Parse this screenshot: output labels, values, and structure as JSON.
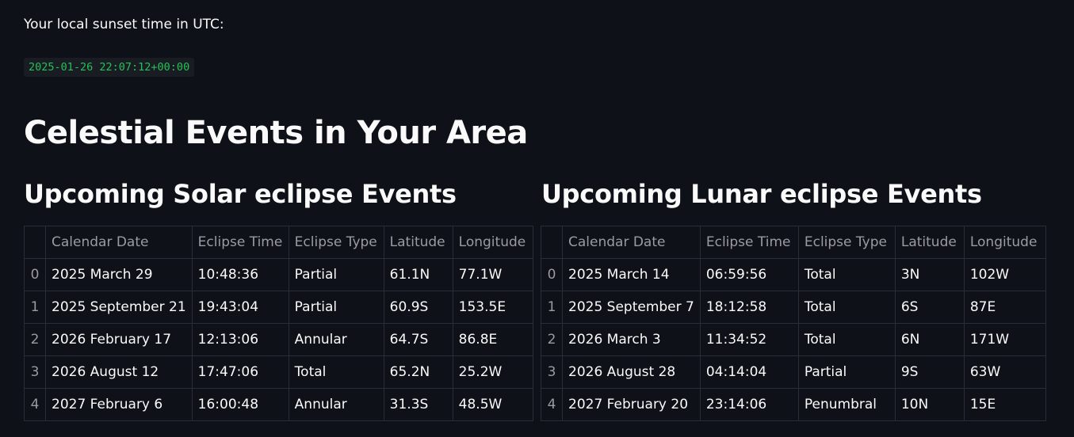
{
  "sunset": {
    "label": "Your local sunset time in UTC:",
    "value": "2025-01-26 22:07:12+00:00"
  },
  "page_title": "Celestial Events in Your Area",
  "solar": {
    "title": "Upcoming Solar eclipse Events",
    "columns": [
      "",
      "Calendar Date",
      "Eclipse Time",
      "Eclipse Type",
      "Latitude",
      "Longitude"
    ],
    "rows": [
      [
        "0",
        "2025 March 29",
        "10:48:36",
        "Partial",
        "61.1N",
        "77.1W"
      ],
      [
        "1",
        "2025 September 21",
        "19:43:04",
        "Partial",
        "60.9S",
        "153.5E"
      ],
      [
        "2",
        "2026 February 17",
        "12:13:06",
        "Annular",
        "64.7S",
        "86.8E"
      ],
      [
        "3",
        "2026 August 12",
        "17:47:06",
        "Total",
        "65.2N",
        "25.2W"
      ],
      [
        "4",
        "2027 February 6",
        "16:00:48",
        "Annular",
        "31.3S",
        "48.5W"
      ]
    ]
  },
  "lunar": {
    "title": "Upcoming Lunar eclipse Events",
    "columns": [
      "",
      "Calendar Date",
      "Eclipse Time",
      "Eclipse Type",
      "Latitude",
      "Longitude"
    ],
    "rows": [
      [
        "0",
        "2025 March 14",
        "06:59:56",
        "Total",
        "3N",
        "102W"
      ],
      [
        "1",
        "2025 September 7",
        "18:12:58",
        "Total",
        "6S",
        "87E"
      ],
      [
        "2",
        "2026 March 3",
        "11:34:52",
        "Total",
        "6N",
        "171W"
      ],
      [
        "3",
        "2026 August 28",
        "04:14:04",
        "Partial",
        "9S",
        "63W"
      ],
      [
        "4",
        "2027 February 20",
        "23:14:06",
        "Penumbral",
        "10N",
        "15E"
      ]
    ]
  }
}
